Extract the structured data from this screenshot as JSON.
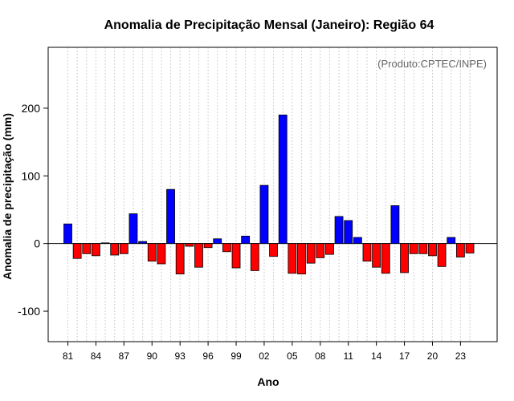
{
  "chart_data": {
    "type": "bar",
    "title": "Anomalia de Precipitação Mensal (Janeiro): Região 64",
    "xlabel": "Ano",
    "ylabel": "Anomalia de precipitação (mm)",
    "annotation": "(Produto:CPTEC/INPE)",
    "ylim": [
      -145,
      290
    ],
    "yticks": [
      -100,
      0,
      100,
      200
    ],
    "grid": true,
    "x_tick_labels": [
      "81",
      "84",
      "87",
      "90",
      "93",
      "96",
      "99",
      "02",
      "05",
      "08",
      "11",
      "14",
      "17",
      "20",
      "23"
    ],
    "years": [
      1981,
      1982,
      1983,
      1984,
      1985,
      1986,
      1987,
      1988,
      1989,
      1990,
      1991,
      1992,
      1993,
      1994,
      1995,
      1996,
      1997,
      1998,
      1999,
      2000,
      2001,
      2002,
      2003,
      2004,
      2005,
      2006,
      2007,
      2008,
      2009,
      2010,
      2011,
      2012,
      2013,
      2014,
      2015,
      2016,
      2017,
      2018,
      2019,
      2020,
      2021,
      2022,
      2023,
      2024
    ],
    "values": [
      29,
      -22,
      -15,
      -18,
      1,
      -17,
      -15,
      44,
      3,
      -26,
      -30,
      80,
      -45,
      -4,
      -35,
      -6,
      7,
      -12,
      -36,
      11,
      -40,
      86,
      -19,
      190,
      -44,
      -45,
      -29,
      -21,
      -16,
      40,
      34,
      9,
      -26,
      -35,
      -44,
      56,
      -43,
      -15,
      -15,
      -18,
      -34,
      9,
      -20,
      -14
    ],
    "positive_color": "#0000ff",
    "negative_color": "#ff0000"
  }
}
